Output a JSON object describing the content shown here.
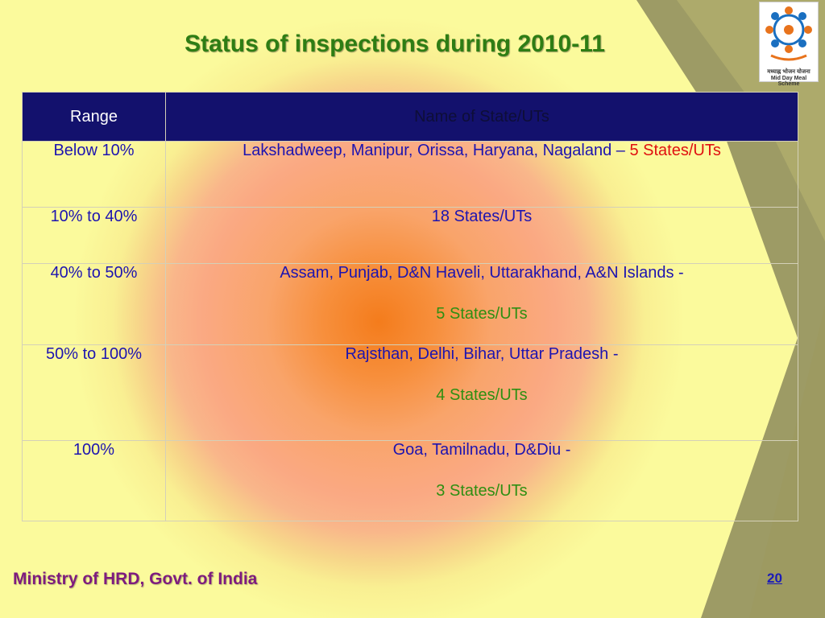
{
  "slide": {
    "title": "Status of inspections during 2010-11",
    "footer": "Ministry of HRD, Govt. of India",
    "page_number": "20"
  },
  "logo": {
    "caption_hindi": "मध्याह्न भोजन योजना",
    "caption_english": "Mid Day Meal Scheme",
    "icon": "mid-day-meal-logo"
  },
  "table": {
    "headers": {
      "range": "Range",
      "name": "Name of State/UTs"
    },
    "rows": [
      {
        "range": "Below 10%",
        "names": "Lakshadweep, Manipur, Orissa, Haryana, Nagaland – ",
        "count": "5 States/UTs",
        "count_color": "red"
      },
      {
        "range": "10% to 40%",
        "names": "18 States/UTs",
        "count": ""
      },
      {
        "range": "40% to 50%",
        "names": "Assam, Punjab, D&N Haveli, Uttarakhand,  A&N Islands  -",
        "count": "5 States/UTs",
        "count_color": "green"
      },
      {
        "range": "50% to 100%",
        "names": "Rajsthan, Delhi, Bihar, Uttar Pradesh    -",
        "count": "4 States/UTs",
        "count_color": "green"
      },
      {
        "range": "100%",
        "names": "Goa, Tamilnadu, D&Diu   -",
        "count": "3 States/UTs",
        "count_color": "green"
      }
    ]
  },
  "colors": {
    "title": "#2e7d14",
    "header_bg": "#13116d",
    "cell_text": "#1d14b0",
    "count_red": "#e01010",
    "count_green": "#2e8f12",
    "footer": "#7e1b7e",
    "page_number": "#1b1bb8"
  }
}
